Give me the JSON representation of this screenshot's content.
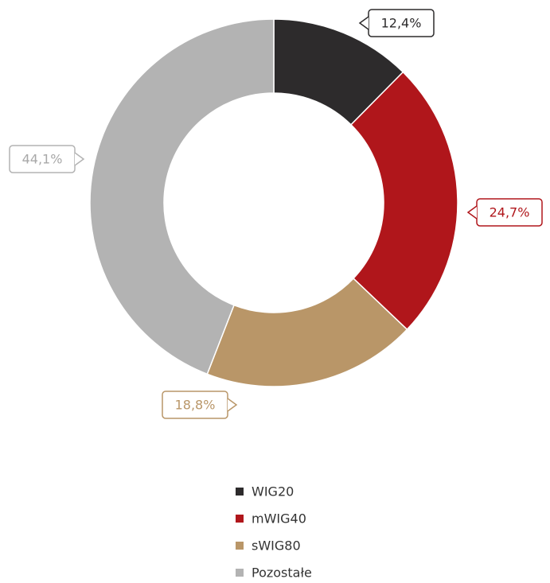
{
  "chart_data": {
    "type": "donut",
    "categories": [
      "WIG20",
      "mWIG40",
      "sWIG80",
      "Pozostałe"
    ],
    "values": [
      12.4,
      24.7,
      18.8,
      44.1
    ],
    "value_labels": [
      "12,4%",
      "24,7%",
      "18,8%",
      "44,1%"
    ],
    "colors": [
      "#2d2b2c",
      "#b0161b",
      "#b99668",
      "#b3b3b3"
    ],
    "legend": "bottom"
  }
}
